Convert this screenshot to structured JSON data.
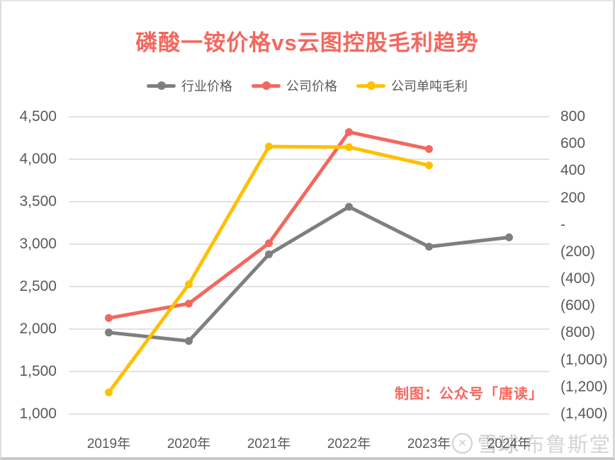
{
  "title": {
    "text": "磷酸一铵价格vs云图控股毛利趋势",
    "color": "#f4675e"
  },
  "legend": {
    "items": [
      {
        "label": "行业价格",
        "color": "#7f7f7f"
      },
      {
        "label": "公司价格",
        "color": "#f2685f"
      },
      {
        "label": "公司单吨毛利",
        "color": "#ffc000"
      }
    ]
  },
  "chart_data": {
    "type": "line",
    "categories": [
      "2019年",
      "2020年",
      "2021年",
      "2022年",
      "2023年",
      "2024年"
    ],
    "series": [
      {
        "name": "行业价格",
        "axis": "left",
        "color": "#7f7f7f",
        "values": [
          1960,
          1860,
          2880,
          3440,
          2970,
          3080
        ]
      },
      {
        "name": "公司价格",
        "axis": "left",
        "color": "#f2685f",
        "values": [
          2130,
          2300,
          3010,
          4320,
          4120,
          null
        ]
      },
      {
        "name": "公司单吨毛利",
        "axis": "right",
        "color": "#ffc000",
        "values": [
          -1240,
          -440,
          580,
          575,
          440,
          null
        ]
      }
    ],
    "left_axis": {
      "min": 1000,
      "max": 4500,
      "tick_labels": [
        "4,500",
        "4,000",
        "3,500",
        "3,000",
        "2,500",
        "2,000",
        "1,500",
        "1,000"
      ]
    },
    "right_axis": {
      "min": -1400,
      "max": 800,
      "tick_labels": [
        "800",
        "600",
        "400",
        "200",
        "-",
        "(200)",
        "(400)",
        "(600)",
        "(800)",
        "(1,000)",
        "(1,200)",
        "(1,400)"
      ]
    },
    "grid": "horizontal",
    "gridline_color": "#d9d9d9",
    "axis_text_color": "#595959",
    "legend_position": "top"
  },
  "annotation": {
    "text": "制图：公众号「唐读」",
    "color": "#f4675e"
  },
  "watermark": {
    "logo_glyph": "✕",
    "site": "雪球",
    "user": "布鲁斯堂"
  }
}
